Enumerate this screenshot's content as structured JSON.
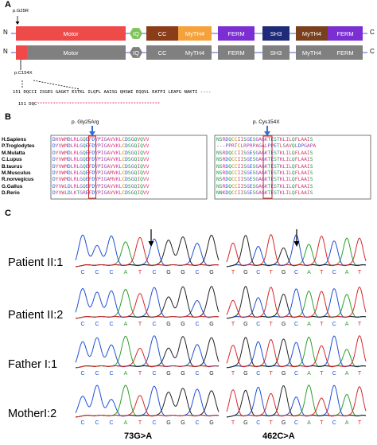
{
  "panels": {
    "a": "A",
    "b": "B",
    "c": "C"
  },
  "panel_a": {
    "top_label": "p.G25R",
    "bottom_label": "p.C154X",
    "n_label": "N",
    "c_label": "C",
    "domains_top": [
      {
        "label": "Motor",
        "color": "#ef4a4a"
      },
      {
        "label": "IQ",
        "color": "#7cc35a"
      },
      {
        "label": "CC",
        "color": "#8b3c19"
      },
      {
        "label": "MyTH4",
        "color": "#f6a23c"
      },
      {
        "label": "FERM",
        "color": "#7b2fd3"
      },
      {
        "label": "SH3",
        "color": "#1f2a78"
      },
      {
        "label": "MyTH4",
        "color": "#7a3f1c"
      },
      {
        "label": "FERM",
        "color": "#7b2fd3"
      }
    ],
    "domains_bottom": [
      {
        "label": "Motor",
        "color": "#808080"
      },
      {
        "label": "IQ",
        "color": "#808080"
      },
      {
        "label": "CC",
        "color": "#808080"
      },
      {
        "label": "MyTH4",
        "color": "#808080"
      },
      {
        "label": "FERM",
        "color": "#808080"
      },
      {
        "label": "SH3",
        "color": "#808080"
      },
      {
        "label": "MyTH4",
        "color": "#808080"
      },
      {
        "label": "FERM",
        "color": "#808080"
      }
    ],
    "seq_wt": "151 DQCCI ISGES GAGKT ESTKL ILQFL AAISG QHSWI EQQVL EATPI LEAFG NAKTI ----",
    "seq_mut": "151 DQC",
    "seq_mut_stars": "**********************************************",
    "colors": {
      "truncated": "#ef4a4a",
      "wildtype": "#808080",
      "arrow": "#000000"
    }
  },
  "panel_b": {
    "marker_left": "p. Gly25Arg",
    "marker_right": "p. Cys154X",
    "species": [
      "H.Sapiens",
      "P.Troglodytes",
      "M.Mulatta",
      "C.Lupus",
      "B.taurus",
      "M.Musculus",
      "R.norvegicus",
      "G.Gallus",
      "D.Rerio"
    ],
    "left_seqs": [
      "DHVWMDLRLGQEFDVPIGAVVKLCDSGQVQVV",
      "DYVWMDLRLGQEFDVPIGAVVKLCDSGQIQVV",
      "DYVWMDLRLGQEFDVPIGAVVKLCDSGQIQVV",
      "DYVWMDLRLGQEFDVPIGAVVKLCDSGQIQVV",
      "DYVWMDLRLGQEFDVPIGAVVKLCDSGQIQVV",
      "DYVWMDLRLGQEFDVPIGAMVKLCDSGQIQVV",
      "DYVWMDLRLGQEFDVPIGAMVKLCDSGQIQVV",
      "DYVWLDLRLGQEFDVPIGAVVKLCDSGQIQVV",
      "DYVWLDLKTGREFDVPIGAVVKLCDSGQIQVV"
    ],
    "right_seqs": [
      "NSRDQCCIISGESGAGKTESTKLILQFLAAIS",
      "---PPRTCLRPRPAGALPPETLSAVQLDPGAPA",
      "NSRDQCCIISGESGAGKTESTKLILQFLAAIS",
      "NSRDQCCIISGESGAGKTESTKLILQFLAAIS",
      "NSRDQCCIISGESGAGKTESTKLILQFLAAIS",
      "NSRDQCCIISGESGAGKTESTKLILQFLAAIS",
      "NSRDQCCIISGESGAGKTESTKLILQFLAAIS",
      "NSRDQCCIISGESGAGKTESTKLILQFLAAIS",
      "NNKDQCCIISGESGAGKTESTKLILQFLAAIS"
    ],
    "colors": {
      "marker": "#2f6fd6",
      "highlight_box": "#d32020"
    }
  },
  "panel_c": {
    "samples": [
      "Patient II:1",
      "Patient II:2",
      "Father I:1",
      "MotherI:2"
    ],
    "left_bases": [
      "C",
      "C",
      "C",
      "A",
      "T",
      "C",
      "G",
      "G",
      "C",
      "G"
    ],
    "right_bases": [
      "T",
      "G",
      "C",
      "T",
      "G",
      "C",
      "A",
      "T",
      "C",
      "A",
      "T"
    ],
    "mutation_left": "73G>A",
    "mutation_right": "462C>A"
  }
}
